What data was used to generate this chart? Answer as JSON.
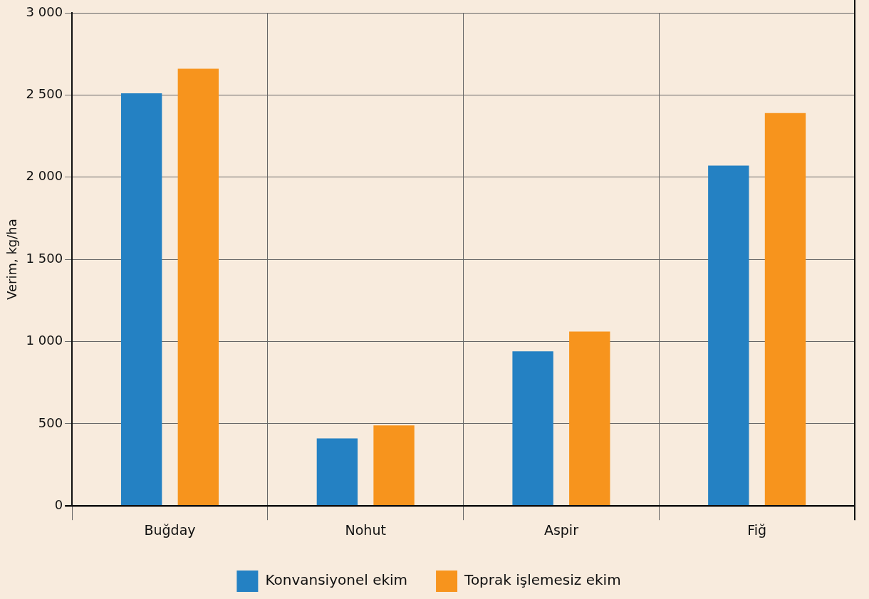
{
  "chart_data": {
    "type": "bar",
    "ylabel": "Verim, kg/ha",
    "categories": [
      "Buğday",
      "Nohut",
      "Aspir",
      "Fiğ"
    ],
    "series": [
      {
        "name": "Konvansiyonel ekim",
        "color": "#2481c3",
        "values": [
          2510,
          410,
          940,
          2070
        ]
      },
      {
        "name": "Toprak işlemesiz ekim",
        "color": "#f7941d",
        "values": [
          2660,
          490,
          1060,
          2390
        ]
      }
    ],
    "ylim": [
      0,
      3000
    ],
    "yticks": [
      {
        "value": 0,
        "label": "0"
      },
      {
        "value": 500,
        "label": "500"
      },
      {
        "value": 1000,
        "label": "1 000"
      },
      {
        "value": 1500,
        "label": "1 500"
      },
      {
        "value": 2000,
        "label": "2 000"
      },
      {
        "value": 2500,
        "label": "2 500"
      },
      {
        "value": 3000,
        "label": "3 000"
      }
    ],
    "grid": true,
    "legend": "bottom"
  }
}
